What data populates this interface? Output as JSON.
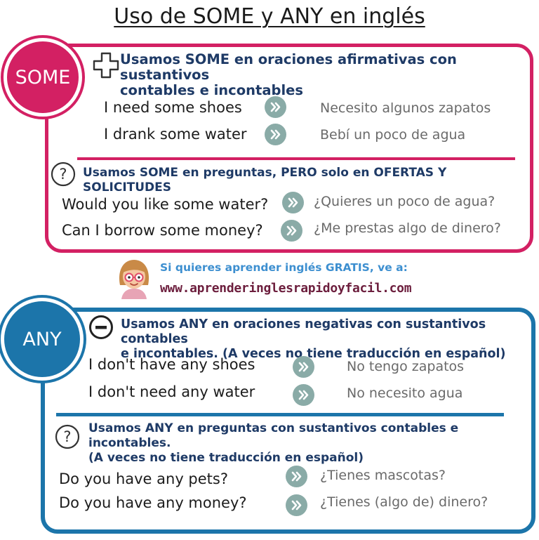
{
  "title": "Uso de SOME y ANY en inglés",
  "colors": {
    "some": "#d32063",
    "any": "#1c75aa",
    "heading": "#1e3a66",
    "arrow": "#8aaba7"
  },
  "some": {
    "badge": "SOME",
    "affirmative": {
      "icon": "plus-icon",
      "heading_line1": "Usamos SOME en oraciones afirmativas con sustantivos",
      "heading_line2": "contables e incontables",
      "examples": [
        {
          "en": "I need some shoes",
          "es": "Necesito algunos zapatos"
        },
        {
          "en": "I drank some water",
          "es": "Bebí un poco de agua"
        }
      ]
    },
    "questions": {
      "icon": "question-icon",
      "heading": "Usamos SOME en preguntas, PERO solo en OFERTAS Y SOLICITUDES",
      "examples": [
        {
          "en": "Would you like some water?",
          "es": "¿Quieres un poco de agua?"
        },
        {
          "en": "Can I borrow some money?",
          "es": "¿Me prestas algo de dinero?"
        }
      ]
    }
  },
  "promo": {
    "line1": "Si quieres aprender inglés GRATIS, ve a:",
    "url": "www.aprenderinglesrapidoyfacil.com"
  },
  "any": {
    "badge": "ANY",
    "negative": {
      "icon": "minus-icon",
      "heading_line1": "Usamos ANY en oraciones negativas con sustantivos contables",
      "heading_line2": "e incontables. (A veces no tiene traducción en español)",
      "examples": [
        {
          "en": "I don't have any shoes",
          "es": "No tengo zapatos"
        },
        {
          "en": "I don't need any water",
          "es": "No necesito agua"
        }
      ]
    },
    "questions": {
      "icon": "question-icon",
      "heading_line1": "Usamos ANY en preguntas con sustantivos contables e incontables.",
      "heading_line2": "(A veces no tiene traducción en español)",
      "examples": [
        {
          "en": "Do you have any pets?",
          "es": "¿Tienes mascotas?"
        },
        {
          "en": "Do you have any money?",
          "es": "¿Tienes (algo de) dinero?"
        }
      ]
    }
  }
}
